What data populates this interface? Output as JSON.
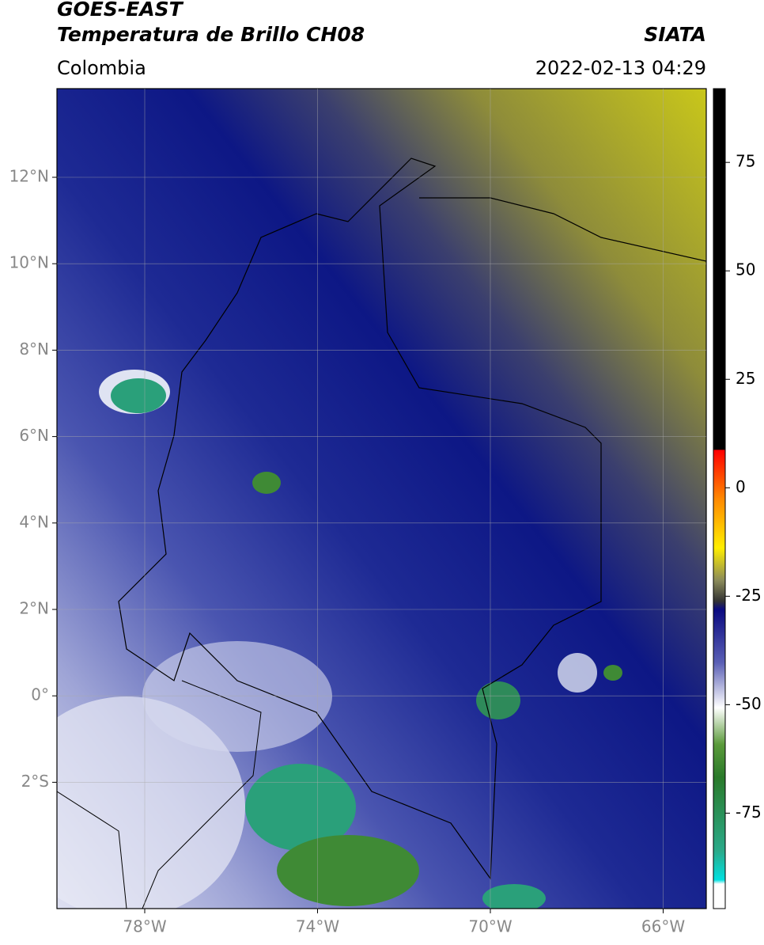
{
  "header": {
    "title_line1": "GOES-EAST",
    "title_line2": "Temperatura de Brillo CH08",
    "region": "Colombia",
    "source": "SIATA",
    "datetime": "2022-02-13 04:29"
  },
  "map": {
    "lat_labels": [
      "12°N",
      "10°N",
      "8°N",
      "6°N",
      "4°N",
      "2°N",
      "0°",
      "2°S"
    ],
    "lon_labels": [
      "78°W",
      "74°W",
      "70°W",
      "66°W"
    ]
  },
  "colorbar": {
    "limits": [
      -97,
      92
    ],
    "ticks": [
      75,
      50,
      25,
      0,
      -25,
      -50,
      -75
    ]
  }
}
